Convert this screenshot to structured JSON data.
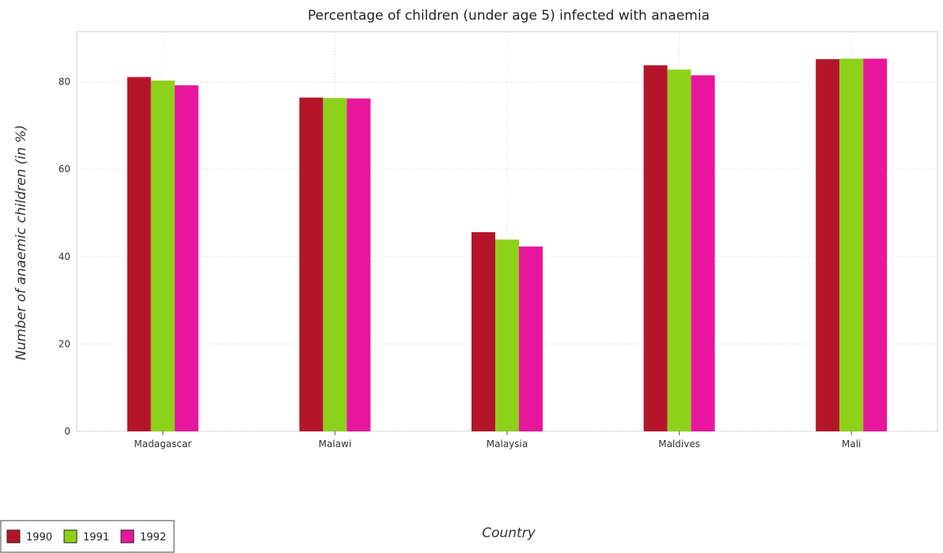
{
  "chart_data": {
    "type": "bar",
    "title": "Percentage of children (under age 5) infected with anaemia",
    "xlabel": "Country",
    "ylabel": "Number of anaemic children (in %)",
    "categories": [
      "Madagascar",
      "Malawi",
      "Malaysia",
      "Maldives",
      "Mali"
    ],
    "series": [
      {
        "name": "1990",
        "color": "#b5152b",
        "values": [
          81.1,
          76.4,
          45.6,
          83.8,
          85.2
        ]
      },
      {
        "name": "1991",
        "color": "#8ed11b",
        "values": [
          80.3,
          76.3,
          43.9,
          82.8,
          85.3
        ]
      },
      {
        "name": "1992",
        "color": "#e8169c",
        "values": [
          79.2,
          76.2,
          42.3,
          81.5,
          85.3
        ]
      }
    ],
    "ylim": [
      0,
      91.5
    ],
    "yticks": [
      0,
      20,
      40,
      60,
      80
    ],
    "grid": true,
    "legend_position": "bottom-left"
  }
}
